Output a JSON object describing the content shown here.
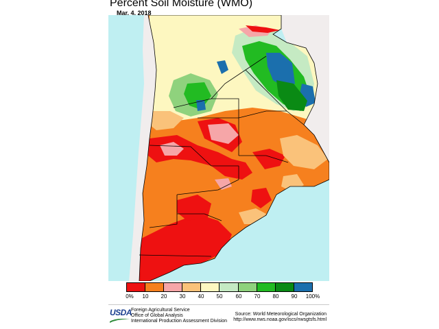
{
  "header": {
    "title": "Percent Soil Moisture (WMO)",
    "date": "Mar. 4, 2018"
  },
  "map": {
    "colors": {
      "ocean": "#bfeff2",
      "land_outside": "#f1eded",
      "border": "#000000"
    }
  },
  "legend": {
    "ticks": [
      "0%",
      "10",
      "20",
      "30",
      "40",
      "50",
      "60",
      "70",
      "80",
      "90",
      "100%"
    ],
    "colors": [
      "#ee1111",
      "#f6801e",
      "#f6a6a8",
      "#fac27a",
      "#fdf7c0",
      "#c5eac3",
      "#8fd27d",
      "#22bb22",
      "#0a8a14",
      "#1b6fad"
    ]
  },
  "footer": {
    "logo_text": "USDA",
    "agency_lines": [
      "Foreign Agricultural Service",
      "Office of Global Analysis",
      "International Production Assessment Division"
    ],
    "source_lines": [
      "Source: World Meteorological Organization",
      "http://www.nws.noaa.gov/iscs/nwsgtsfs.html"
    ]
  }
}
